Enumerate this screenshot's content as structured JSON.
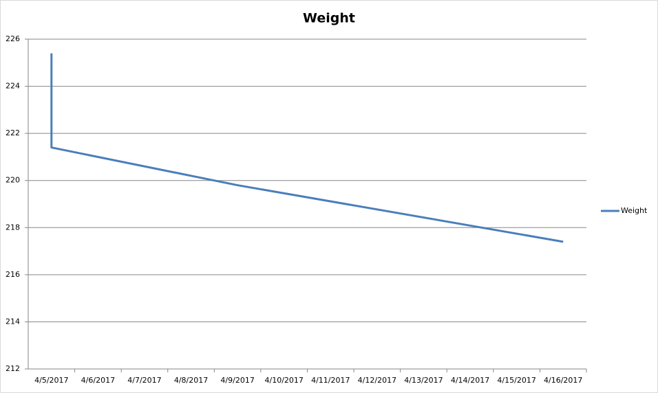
{
  "chart_data": {
    "type": "line",
    "title": "Weight",
    "x": [
      "4/5/2017",
      "4/5/2017",
      "4/9/2017",
      "4/16/2017"
    ],
    "series": [
      {
        "name": "Weight",
        "color": "#4a7ebb",
        "values": [
          225.4,
          221.4,
          219.8,
          217.4
        ]
      }
    ],
    "xticks": [
      "4/5/2017",
      "4/6/2017",
      "4/7/2017",
      "4/8/2017",
      "4/9/2017",
      "4/10/2017",
      "4/11/2017",
      "4/12/2017",
      "4/13/2017",
      "4/14/2017",
      "4/15/2017",
      "4/16/2017"
    ],
    "ylim": [
      212,
      226
    ],
    "yticks": [
      212,
      214,
      216,
      218,
      220,
      222,
      224,
      226
    ],
    "grid": true,
    "legend": "right"
  }
}
